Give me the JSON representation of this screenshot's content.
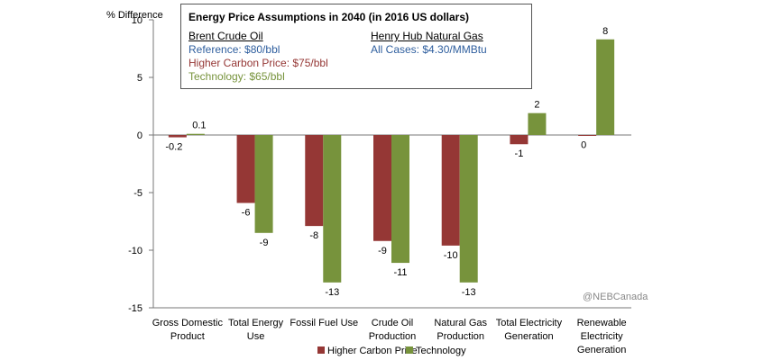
{
  "chart_data": {
    "type": "bar",
    "ylabel": "% Difference",
    "ylim": [
      -15,
      10
    ],
    "yticks": [
      10,
      5,
      0,
      -5,
      -10,
      -15
    ],
    "grid": false,
    "legend_position": "bottom",
    "categories": [
      [
        "Gross Domestic",
        "Product"
      ],
      [
        "Total Energy",
        "Use"
      ],
      [
        "Fossil Fuel Use"
      ],
      [
        "Crude Oil",
        "Production"
      ],
      [
        "Natural Gas",
        "Production"
      ],
      [
        "Total Electricity",
        "Generation"
      ],
      [
        "Renewable",
        "Electricity",
        "Generation"
      ]
    ],
    "series": [
      {
        "name": "Higher Carbon Price",
        "color": "#953735",
        "values": [
          -0.2,
          -5.9,
          -7.9,
          -9.2,
          -9.6,
          -0.8,
          -0.05
        ],
        "labels": [
          "-0.2",
          "-6",
          "-8",
          "-9",
          "-10",
          "-1",
          "0"
        ]
      },
      {
        "name": "Technology",
        "color": "#77933C",
        "values": [
          0.1,
          -8.5,
          -12.8,
          -11.1,
          -12.8,
          1.9,
          8.3
        ],
        "labels": [
          "0.1",
          "-9",
          "-13",
          "-11",
          "-13",
          "2",
          "8"
        ]
      }
    ]
  },
  "info_box": {
    "title": "Energy Price Assumptions in 2040 (in 2016 US dollars)",
    "oil_heading": "Brent Crude Oil",
    "oil_reference": "Reference: $80/bbl",
    "oil_hcp": "Higher Carbon Price: $75/bbl",
    "oil_tech": "Technology: $65/bbl",
    "gas_heading": "Henry Hub Natural Gas",
    "gas_all": "All Cases: $4.30/MMBtu",
    "reference_color": "#2E5E9E"
  },
  "watermark": "@NEBCanada"
}
